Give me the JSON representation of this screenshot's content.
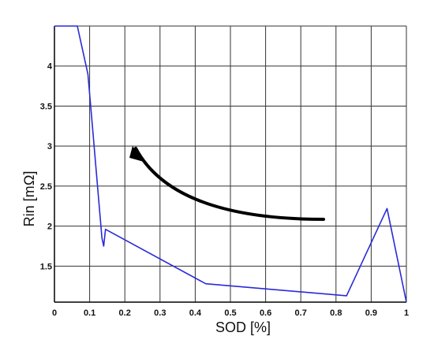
{
  "chart_data": {
    "type": "line",
    "title": "",
    "xlabel": "SOD [%]",
    "ylabel": "Rin [mΩ]",
    "xlim": [
      0,
      1
    ],
    "ylim": [
      1.05,
      4.5
    ],
    "grid": true,
    "x_ticks": [
      "0",
      "0.1",
      "0.2",
      "0.3",
      "0.4",
      "0.5",
      "0.6",
      "0.7",
      "0.8",
      "0.9",
      "1"
    ],
    "y_ticks": [
      "1.5",
      "2",
      "2.5",
      "3",
      "3.5",
      "4"
    ],
    "series": [
      {
        "color": "#2a2ad8",
        "x": [
          0.0,
          0.065,
          0.095,
          0.105,
          0.135,
          0.14,
          0.145,
          0.43,
          0.83,
          0.945,
          1.0
        ],
        "y": [
          4.5,
          4.5,
          3.9,
          3.4,
          1.85,
          1.75,
          1.96,
          1.28,
          1.13,
          2.22,
          1.05
        ]
      }
    ],
    "annotation": {
      "shape": "curved-arrow",
      "color": "#000000"
    }
  }
}
